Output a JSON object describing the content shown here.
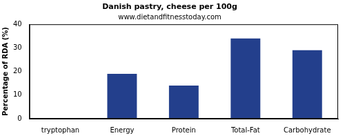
{
  "chart_data": {
    "type": "bar",
    "title": "Danish pastry, cheese per 100g",
    "subtitle": "www.dietandfitnesstoday.com",
    "y_label": "Percentage of RDA (%)",
    "categories": [
      "tryptophan",
      "Energy",
      "Protein",
      "Total-Fat",
      "Carbohydrate"
    ],
    "values": [
      0,
      19,
      14,
      34,
      29
    ],
    "color": "#233f8c",
    "ylim": [
      0,
      40
    ],
    "yticks": [
      0,
      10,
      20,
      30,
      40
    ],
    "grid": false
  }
}
